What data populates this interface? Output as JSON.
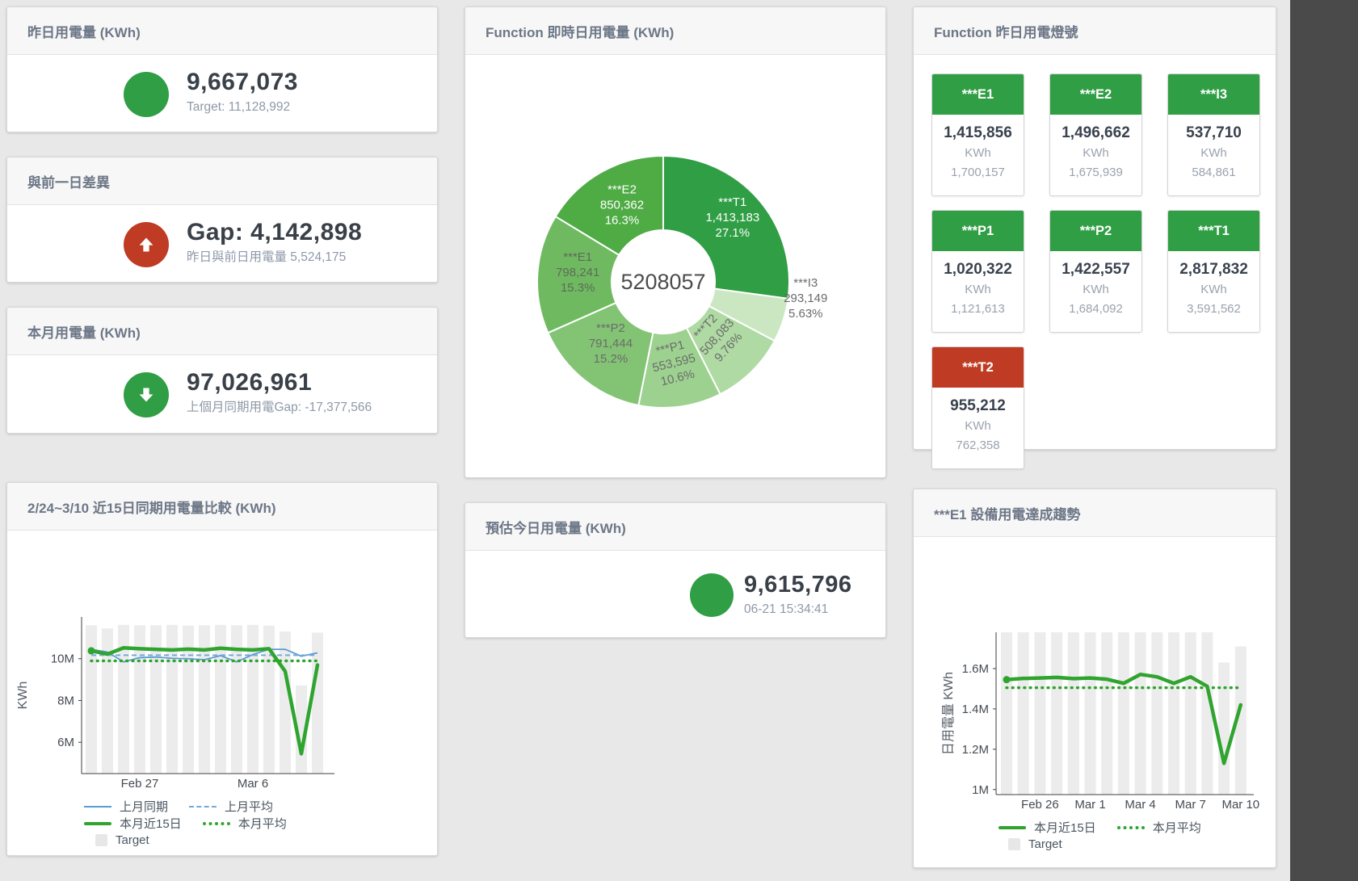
{
  "colors": {
    "green": "#2f9e44",
    "red": "#bf3b23",
    "blue": "#5b9bd5",
    "chart_green": "#2fa42e",
    "target_bar": "#ececec",
    "background": "#e8e8e8",
    "side_band": "#4a4a4a"
  },
  "stat_panels": [
    {
      "title": "昨日用電量 (KWh)",
      "value": "9,667,073",
      "subtitle": "Target: 11,128,992",
      "icon": "circle",
      "icon_color": "green"
    },
    {
      "title": "與前一日差異",
      "value": "Gap: 4,142,898",
      "subtitle": "昨日與前日用電量 5,524,175",
      "icon": "arrow-up",
      "icon_color": "red"
    },
    {
      "title": "本月用電量 (KWh)",
      "value": "97,026,961",
      "subtitle": "上個月同期用電Gap: -17,377,566",
      "icon": "arrow-down",
      "icon_color": "green"
    },
    {
      "title": "預估今日用電量 (KWh)",
      "value": "9,615,796",
      "subtitle": "06-21 15:34:41",
      "icon": "circle",
      "icon_color": "green"
    }
  ],
  "lights": {
    "title": "Function 昨日用電燈號",
    "unit": "KWh",
    "tiles": [
      {
        "name": "***E1",
        "value": "1,415,856",
        "target": "1,700,157",
        "status": "green"
      },
      {
        "name": "***E2",
        "value": "1,496,662",
        "target": "1,675,939",
        "status": "green"
      },
      {
        "name": "***I3",
        "value": "537,710",
        "target": "584,861",
        "status": "green"
      },
      {
        "name": "***P1",
        "value": "1,020,322",
        "target": "1,121,613",
        "status": "green"
      },
      {
        "name": "***P2",
        "value": "1,422,557",
        "target": "1,684,092",
        "status": "green"
      },
      {
        "name": "***T1",
        "value": "2,817,832",
        "target": "3,591,562",
        "status": "green"
      },
      {
        "name": "***T2",
        "value": "955,212",
        "target": "762,358",
        "status": "red"
      }
    ]
  },
  "chart_data": {
    "donut": {
      "type": "pie",
      "title": "Function 即時日用電量 (KWh)",
      "center_total": "5208057",
      "slices": [
        {
          "name": "***T1",
          "value": "1,413,183",
          "pct": "27.1%",
          "color": "#2f9e44",
          "text_color": "#ffffff"
        },
        {
          "name": "***I3",
          "value": "293,149",
          "pct": "5.63%",
          "color": "#cbe7c2",
          "text_color": "#6b6b6b"
        },
        {
          "name": "***T2",
          "value": "508,083",
          "pct": "9.76%",
          "color": "#afdaa3",
          "text_color": "#6b6b6b"
        },
        {
          "name": "***P1",
          "value": "553,595",
          "pct": "10.6%",
          "color": "#9dd190",
          "text_color": "#6b6b6b"
        },
        {
          "name": "***P2",
          "value": "791,444",
          "pct": "15.2%",
          "color": "#83c474",
          "text_color": "#6b6b6b"
        },
        {
          "name": "***E1",
          "value": "798,241",
          "pct": "15.3%",
          "color": "#6fba60",
          "text_color": "#5d6a5a"
        },
        {
          "name": "***E2",
          "value": "850,362",
          "pct": "16.3%",
          "color": "#4fab44",
          "text_color": "#ffffff"
        }
      ]
    },
    "compare": {
      "type": "line",
      "title": "2/24~3/10 近15日同期用電量比較 (KWh)",
      "ylabel": "KWh",
      "ylim": [
        4.5,
        12
      ],
      "yticks": [
        {
          "v": 6,
          "label": "6M"
        },
        {
          "v": 8,
          "label": "8M"
        },
        {
          "v": 10,
          "label": "10M"
        }
      ],
      "xticks": [
        {
          "i": 3,
          "label": "Feb 27"
        },
        {
          "i": 10,
          "label": "Mar 6"
        }
      ],
      "x_range": "2/24~3/10 (15 days)",
      "unit": "M KWh",
      "targets": [
        11.6,
        11.45,
        11.62,
        11.6,
        11.6,
        11.62,
        11.58,
        11.6,
        11.62,
        11.6,
        11.62,
        11.58,
        11.3,
        8.72,
        11.25
      ],
      "series": [
        {
          "name": "上月同期",
          "swatch": "line",
          "color": "#5b9bd5",
          "values": [
            10.45,
            10.32,
            9.85,
            10.05,
            10.08,
            10.02,
            10.0,
            9.95,
            10.15,
            9.85,
            10.2,
            10.45,
            10.45,
            10.12,
            10.28
          ]
        },
        {
          "name": "上月平均",
          "swatch": "dash",
          "color": "#74a9dc",
          "constant": 10.17
        },
        {
          "name": "本月近15日",
          "swatch": "thick",
          "color": "#2fa42e",
          "values": [
            10.38,
            10.22,
            10.52,
            10.48,
            10.45,
            10.42,
            10.46,
            10.42,
            10.5,
            10.45,
            10.42,
            10.48,
            9.4,
            5.45,
            9.7
          ]
        },
        {
          "name": "本月平均",
          "swatch": "dots",
          "color": "#2fa42e",
          "constant": 9.9
        }
      ],
      "target_legend": {
        "label": "Target",
        "color": "#e7e7e7"
      },
      "legend_rows": [
        [
          0,
          1
        ],
        [
          2,
          3
        ],
        [
          "target"
        ]
      ]
    },
    "trend": {
      "type": "line",
      "title": "***E1 設備用電達成趨勢",
      "ylabel": "日用電量 KWh",
      "ylim": [
        0.975,
        1.78
      ],
      "yticks": [
        {
          "v": 1,
          "label": "1M"
        },
        {
          "v": 1.2,
          "label": "1.2M"
        },
        {
          "v": 1.4,
          "label": "1.4M"
        },
        {
          "v": 1.6,
          "label": "1.6M"
        }
      ],
      "xticks": [
        {
          "i": 2,
          "label": "Feb 26"
        },
        {
          "i": 5,
          "label": "Mar 1"
        },
        {
          "i": 8,
          "label": "Mar 4"
        },
        {
          "i": 11,
          "label": "Mar 7"
        },
        {
          "i": 14,
          "label": "Mar 10"
        }
      ],
      "x_range": "Feb 24 - Mar 10 (15 days)",
      "unit": "M KWh",
      "targets": [
        1.78,
        1.78,
        1.78,
        1.78,
        1.78,
        1.78,
        1.78,
        1.78,
        1.78,
        1.78,
        1.78,
        1.78,
        1.78,
        1.63,
        1.71
      ],
      "series": [
        {
          "name": "本月近15日",
          "swatch": "thick",
          "color": "#2fa42e",
          "values": [
            1.545,
            1.551,
            1.553,
            1.556,
            1.55,
            1.553,
            1.547,
            1.527,
            1.571,
            1.559,
            1.527,
            1.559,
            1.512,
            1.13,
            1.42
          ]
        },
        {
          "name": "本月平均",
          "swatch": "dots",
          "color": "#2fa42e",
          "constant": 1.505
        }
      ],
      "target_legend": {
        "label": "Target",
        "color": "#e7e7e7"
      },
      "legend_rows": [
        [
          0,
          1
        ],
        [
          "target"
        ]
      ]
    }
  }
}
